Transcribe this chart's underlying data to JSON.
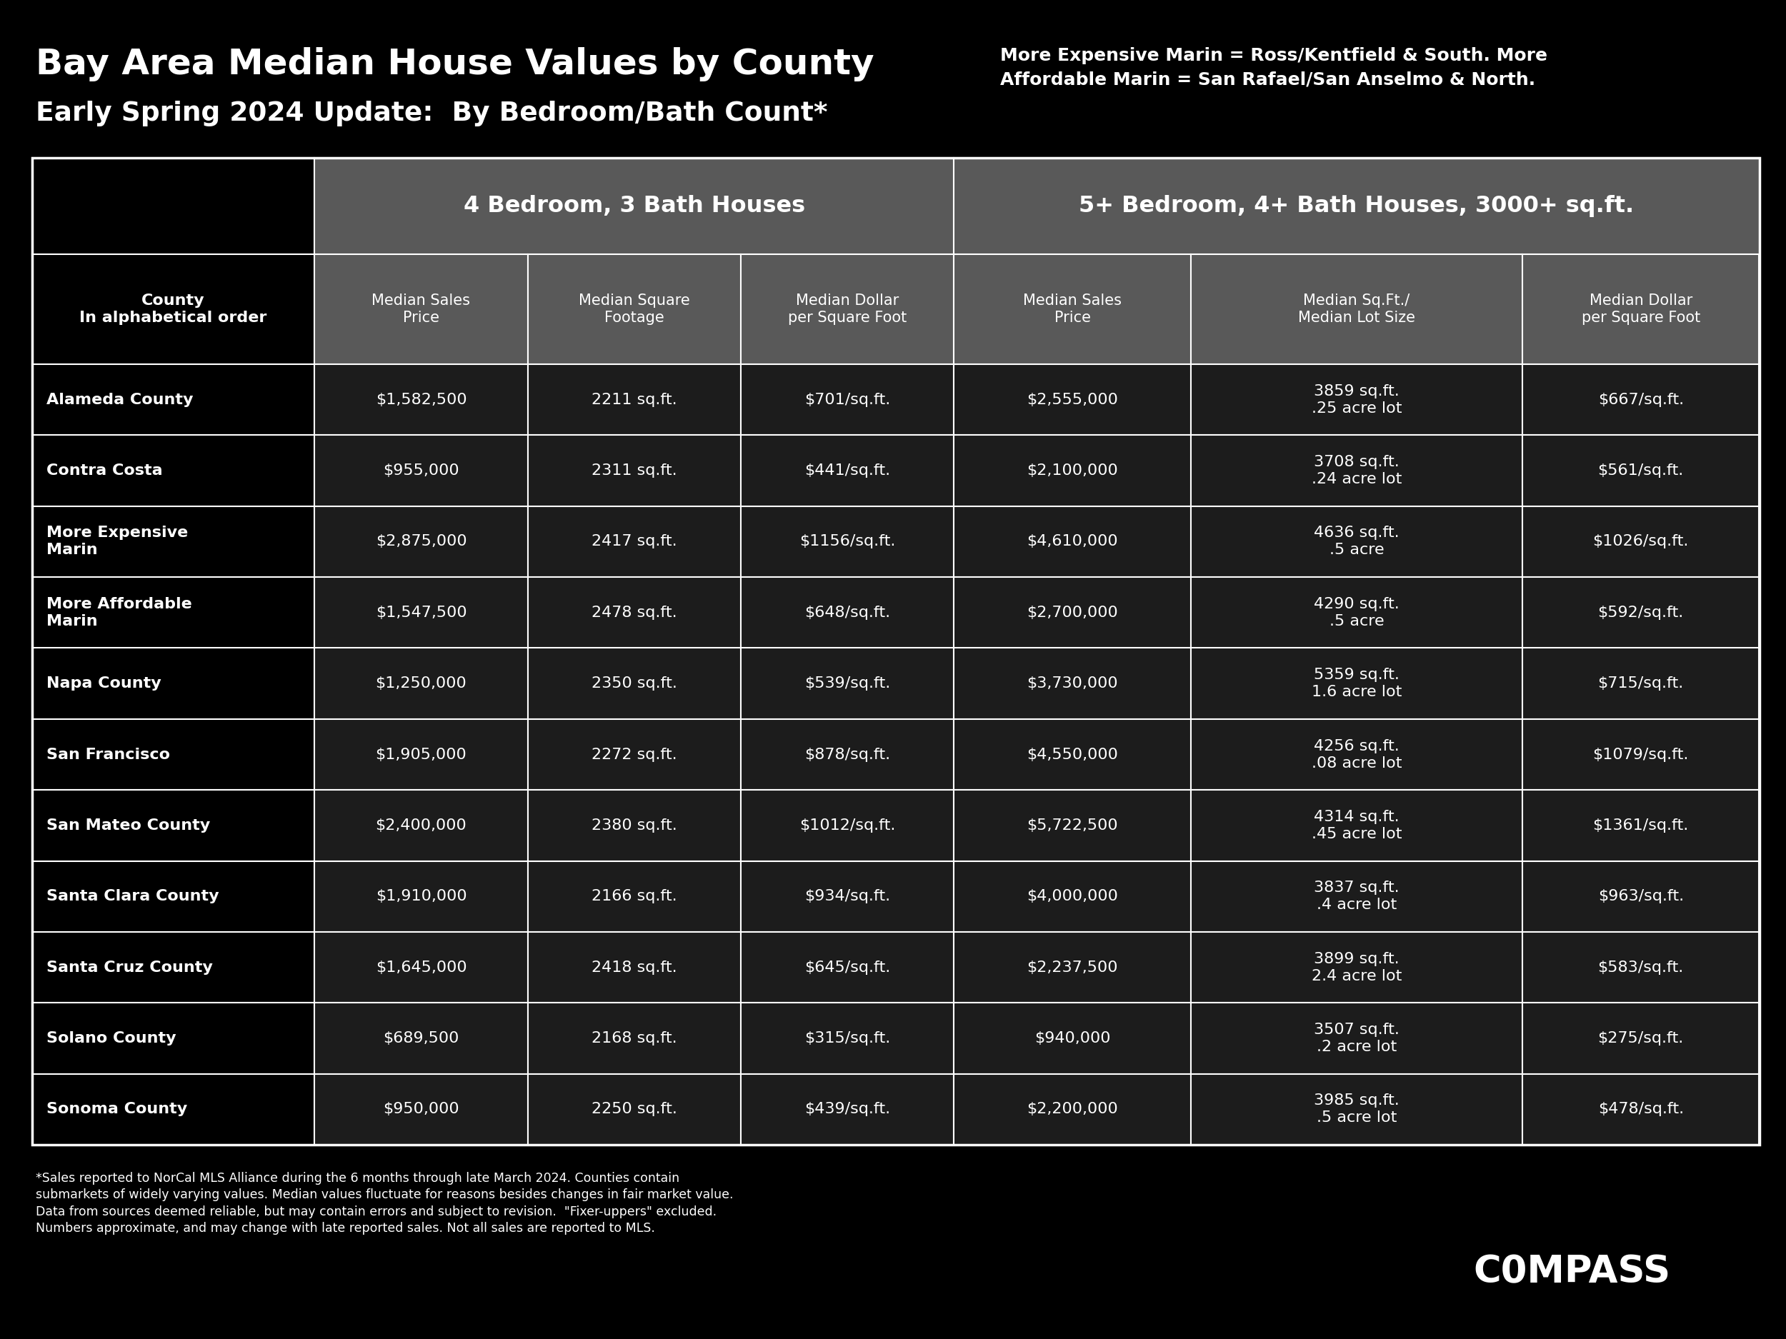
{
  "title_line1": "Bay Area Median House Values by County",
  "title_line2": "Early Spring 2024 Update:  By Bedroom/Bath Count*",
  "subtitle_right": "More Expensive Marin = Ross/Kentfield & South. More\nAffordable Marin = San Rafael/San Anselmo & North.",
  "bg_color": "#000000",
  "header1": "4 Bedroom, 3 Bath Houses",
  "header2": "5+ Bedroom, 4+ Bath Houses, 3000+ sq.ft.",
  "col_headers": [
    "County\nIn alphabetical order",
    "Median Sales\nPrice",
    "Median Square\nFootage",
    "Median Dollar\nper Square Foot",
    "Median Sales\nPrice",
    "Median Sq.Ft./\nMedian Lot Size",
    "Median Dollar\nper Square Foot"
  ],
  "rows": [
    {
      "county": "Alameda County",
      "col1": "$1,582,500",
      "col2": "2211 sq.ft.",
      "col3": "$701/sq.ft.",
      "col4": "$2,555,000",
      "col5": "3859 sq.ft.\n.25 acre lot",
      "col6": "$667/sq.ft."
    },
    {
      "county": "Contra Costa",
      "col1": "$955,000",
      "col2": "2311 sq.ft.",
      "col3": "$441/sq.ft.",
      "col4": "$2,100,000",
      "col5": "3708 sq.ft.\n.24 acre lot",
      "col6": "$561/sq.ft."
    },
    {
      "county": "More Expensive\nMarin",
      "col1": "$2,875,000",
      "col2": "2417 sq.ft.",
      "col3": "$1156/sq.ft.",
      "col4": "$4,610,000",
      "col5": "4636 sq.ft.\n.5 acre",
      "col6": "$1026/sq.ft."
    },
    {
      "county": "More Affordable\nMarin",
      "col1": "$1,547,500",
      "col2": "2478 sq.ft.",
      "col3": "$648/sq.ft.",
      "col4": "$2,700,000",
      "col5": "4290 sq.ft.\n.5 acre",
      "col6": "$592/sq.ft."
    },
    {
      "county": "Napa County",
      "col1": "$1,250,000",
      "col2": "2350 sq.ft.",
      "col3": "$539/sq.ft.",
      "col4": "$3,730,000",
      "col5": "5359 sq.ft.\n1.6 acre lot",
      "col6": "$715/sq.ft."
    },
    {
      "county": "San Francisco",
      "col1": "$1,905,000",
      "col2": "2272 sq.ft.",
      "col3": "$878/sq.ft.",
      "col4": "$4,550,000",
      "col5": "4256 sq.ft.\n.08 acre lot",
      "col6": "$1079/sq.ft."
    },
    {
      "county": "San Mateo County",
      "col1": "$2,400,000",
      "col2": "2380 sq.ft.",
      "col3": "$1012/sq.ft.",
      "col4": "$5,722,500",
      "col5": "4314 sq.ft.\n.45 acre lot",
      "col6": "$1361/sq.ft."
    },
    {
      "county": "Santa Clara County",
      "col1": "$1,910,000",
      "col2": "2166 sq.ft.",
      "col3": "$934/sq.ft.",
      "col4": "$4,000,000",
      "col5": "3837 sq.ft.\n.4 acre lot",
      "col6": "$963/sq.ft."
    },
    {
      "county": "Santa Cruz County",
      "col1": "$1,645,000",
      "col2": "2418 sq.ft.",
      "col3": "$645/sq.ft.",
      "col4": "$2,237,500",
      "col5": "3899 sq.ft.\n2.4 acre lot",
      "col6": "$583/sq.ft."
    },
    {
      "county": "Solano County",
      "col1": "$689,500",
      "col2": "2168 sq.ft.",
      "col3": "$315/sq.ft.",
      "col4": "$940,000",
      "col5": "3507 sq.ft.\n.2 acre lot",
      "col6": "$275/sq.ft."
    },
    {
      "county": "Sonoma County",
      "col1": "$950,000",
      "col2": "2250 sq.ft.",
      "col3": "$439/sq.ft.",
      "col4": "$2,200,000",
      "col5": "3985 sq.ft.\n.5 acre lot",
      "col6": "$478/sq.ft."
    }
  ],
  "footnote": "*Sales reported to NorCal MLS Alliance during the 6 months through late March 2024. Counties contain\nsubmarkets of widely varying values. Median values fluctuate for reasons besides changes in fair market value.\nData from sources deemed reliable, but may contain errors and subject to revision.  \"Fixer-uppers\" excluded.\nNumbers approximate, and may change with late reported sales. Not all sales are reported to MLS.",
  "header_gray": "#595959",
  "row_dark": "#1a1a1a",
  "row_light": "#2d2d2d",
  "white": "#ffffff",
  "border_color": "#ffffff"
}
